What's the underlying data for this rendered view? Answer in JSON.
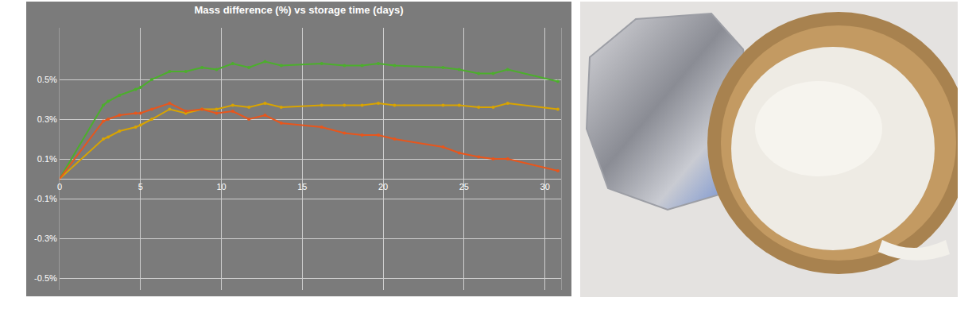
{
  "chart_data": {
    "type": "line",
    "title": "Mass difference (%) vs storage time (days)",
    "x": [
      0,
      2.7,
      3,
      3.7,
      4.7,
      5,
      5.7,
      6.8,
      7.8,
      8.8,
      9.7,
      10.7,
      11.7,
      12.7,
      13.7,
      16.2,
      17.6,
      18.7,
      19.7,
      20.7,
      23.7,
      24.7,
      25.9,
      26.8,
      27.7,
      30.8
    ],
    "series": [
      {
        "color": "#4caf2c",
        "values": [
          0,
          0.37,
          0.39,
          0.42,
          0.45,
          0.46,
          0.5,
          0.54,
          0.54,
          0.56,
          0.55,
          0.58,
          0.56,
          0.59,
          0.57,
          0.58,
          0.57,
          0.57,
          0.58,
          0.57,
          0.56,
          0.55,
          0.53,
          0.53,
          0.55,
          0.49
        ]
      },
      {
        "color": "#d9a400",
        "values": [
          0,
          0.2,
          0.21,
          0.24,
          0.26,
          0.27,
          0.3,
          0.35,
          0.33,
          0.35,
          0.35,
          0.37,
          0.36,
          0.38,
          0.36,
          0.37,
          0.37,
          0.37,
          0.38,
          0.37,
          0.37,
          0.37,
          0.36,
          0.36,
          0.38,
          0.35
        ]
      },
      {
        "color": "#e8561c",
        "values": [
          0,
          0.29,
          0.3,
          0.32,
          0.33,
          0.33,
          0.35,
          0.38,
          0.34,
          0.35,
          0.33,
          0.34,
          0.3,
          0.32,
          0.28,
          0.26,
          0.23,
          0.22,
          0.22,
          0.2,
          0.16,
          0.13,
          0.11,
          0.1,
          0.1,
          0.04
        ]
      }
    ],
    "xlim": [
      0,
      31
    ],
    "xticks": [
      0,
      5,
      10,
      15,
      20,
      25,
      30
    ],
    "ylim": [
      -0.56,
      0.76
    ],
    "yticks": [
      {
        "value": -0.5,
        "label": "-0.5%"
      },
      {
        "value": -0.3,
        "label": "-0.3%"
      },
      {
        "value": -0.1,
        "label": "-0.1%"
      },
      {
        "value": 0.1,
        "label": "0.1%"
      },
      {
        "value": 0.3,
        "label": "0.3%"
      },
      {
        "value": 0.5,
        "label": "0.5%"
      }
    ],
    "grid": true,
    "marker": "circle",
    "line_style": "solid"
  }
}
